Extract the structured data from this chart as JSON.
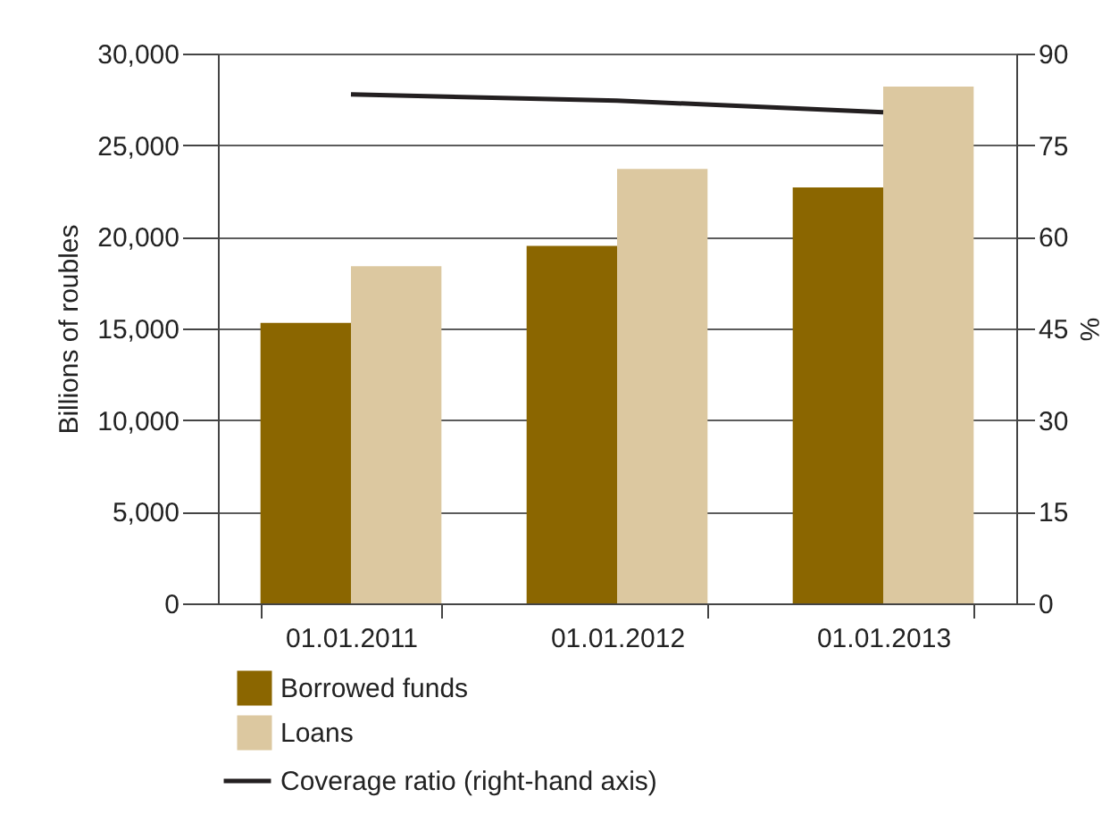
{
  "chart_data": {
    "type": "bar",
    "categories": [
      "01.01.2011",
      "01.01.2012",
      "01.01.2013"
    ],
    "ylabel": "Billions of roubles",
    "y2label": "%",
    "series": [
      {
        "name": "Borrowed funds",
        "color": "#8b6600",
        "values": [
          15300,
          19500,
          22700
        ]
      },
      {
        "name": "Loans",
        "color": "#dcc8a0",
        "values": [
          18400,
          23700,
          28200
        ]
      },
      {
        "name": "Coverage ratio (right-hand axis)",
        "type": "line",
        "axis": "y2",
        "color": "#231f20",
        "values": [
          83.3,
          82.3,
          80.4
        ]
      }
    ],
    "ylim": [
      0,
      30000
    ],
    "yticks": [
      0,
      {
        "value": 5000,
        "label": "5,000"
      },
      {
        "value": 10000,
        "label": "10,000"
      },
      {
        "value": 15000,
        "label": "15,000"
      },
      {
        "value": 20000,
        "label": "20,000"
      },
      {
        "value": 25000,
        "label": "25,000"
      },
      {
        "value": 30000,
        "label": "30,000"
      }
    ],
    "y2lim": [
      0,
      90
    ],
    "y2ticks": [
      0,
      15,
      30,
      45,
      60,
      75,
      90
    ],
    "grid": "y",
    "legend": "bottom"
  }
}
